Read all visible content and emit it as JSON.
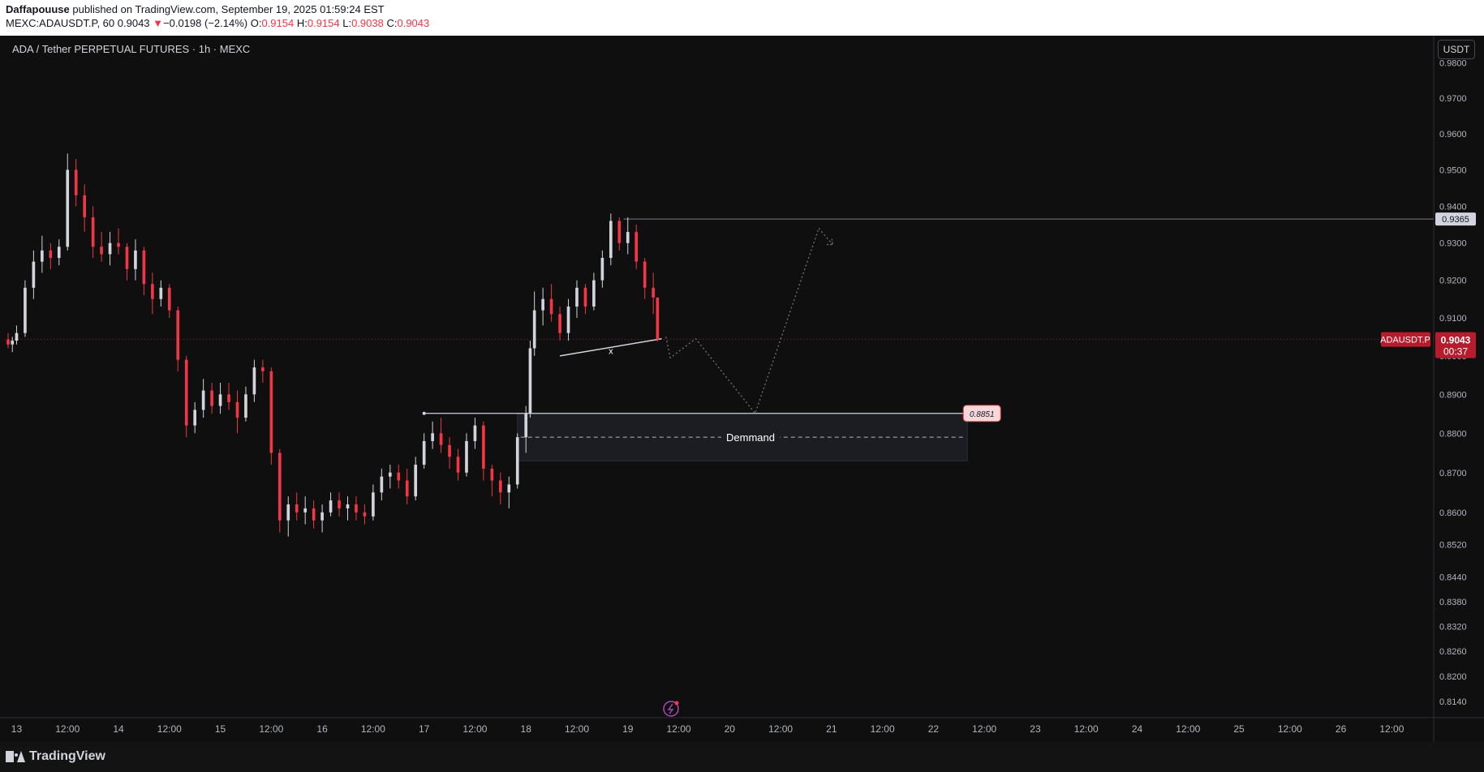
{
  "header": {
    "author": "Daffapouuse",
    "published": "published on TradingView.com, September 19, 2025 01:59:24 EST",
    "symbol_info": "MEXC:ADAUSDT.P, 60",
    "last": "0.9043",
    "change_arrow": "▼",
    "change": "−0.0198 (−2.14%)",
    "open_label": "O:",
    "open": "0.9154",
    "high_label": "H:",
    "high": "0.9154",
    "low_label": "L:",
    "low": "0.9038",
    "close_label": "C:",
    "close": "0.9043"
  },
  "chart_title": "ADA / Tether PERPETUAL FUTURES · 1h · MEXC",
  "unit_button": "USDT",
  "footer": {
    "brand": "TradingView"
  },
  "colors": {
    "up": "#d1d4dc",
    "down": "#f23645",
    "background": "#0f0f0f",
    "accent": "#ab47bc"
  },
  "chart_data": {
    "type": "candlestick",
    "title": "ADA / Tether PERPETUAL FUTURES · 1h · MEXC",
    "price_scale": "log",
    "y_ticks": [
      "0.9800",
      "0.9700",
      "0.9600",
      "0.9500",
      "0.9400",
      "0.9300",
      "0.9200",
      "0.9100",
      "0.9000",
      "0.8900",
      "0.8800",
      "0.8700",
      "0.8600",
      "0.8520",
      "0.8440",
      "0.8380",
      "0.8320",
      "0.8260",
      "0.8200",
      "0.8140"
    ],
    "x_ticks": [
      "13",
      "12:00",
      "14",
      "12:00",
      "15",
      "12:00",
      "16",
      "12:00",
      "17",
      "12:00",
      "18",
      "12:00",
      "19",
      "12:00",
      "20",
      "12:00",
      "21",
      "12:00",
      "22",
      "12:00",
      "23",
      "12:00",
      "24",
      "12:00",
      "25",
      "12:00",
      "26",
      "12:00"
    ],
    "x_start": "2025-09-12 22:00",
    "x_end": "2025-09-26 19:00",
    "candle_interval_hours": 1,
    "candles": [
      {
        "t": "2025-09-12 22:00",
        "o": 0.9043,
        "h": 0.906,
        "l": 0.902,
        "c": 0.903
      },
      {
        "t": "2025-09-12 23:00",
        "o": 0.903,
        "h": 0.905,
        "l": 0.901,
        "c": 0.904
      },
      {
        "t": "2025-09-13 00:00",
        "o": 0.904,
        "h": 0.908,
        "l": 0.903,
        "c": 0.906
      },
      {
        "t": "2025-09-13 02:00",
        "o": 0.906,
        "h": 0.92,
        "l": 0.905,
        "c": 0.918
      },
      {
        "t": "2025-09-13 04:00",
        "o": 0.918,
        "h": 0.928,
        "l": 0.915,
        "c": 0.925
      },
      {
        "t": "2025-09-13 06:00",
        "o": 0.925,
        "h": 0.932,
        "l": 0.922,
        "c": 0.928
      },
      {
        "t": "2025-09-13 08:00",
        "o": 0.928,
        "h": 0.93,
        "l": 0.923,
        "c": 0.926
      },
      {
        "t": "2025-09-13 10:00",
        "o": 0.926,
        "h": 0.931,
        "l": 0.924,
        "c": 0.929
      },
      {
        "t": "2025-09-13 12:00",
        "o": 0.929,
        "h": 0.9545,
        "l": 0.928,
        "c": 0.95
      },
      {
        "t": "2025-09-13 14:00",
        "o": 0.95,
        "h": 0.953,
        "l": 0.94,
        "c": 0.943
      },
      {
        "t": "2025-09-13 16:00",
        "o": 0.943,
        "h": 0.946,
        "l": 0.933,
        "c": 0.937
      },
      {
        "t": "2025-09-13 18:00",
        "o": 0.937,
        "h": 0.94,
        "l": 0.926,
        "c": 0.929
      },
      {
        "t": "2025-09-13 20:00",
        "o": 0.929,
        "h": 0.933,
        "l": 0.925,
        "c": 0.927
      },
      {
        "t": "2025-09-13 22:00",
        "o": 0.927,
        "h": 0.933,
        "l": 0.924,
        "c": 0.93
      },
      {
        "t": "2025-09-14 00:00",
        "o": 0.93,
        "h": 0.934,
        "l": 0.927,
        "c": 0.929
      },
      {
        "t": "2025-09-14 02:00",
        "o": 0.929,
        "h": 0.93,
        "l": 0.92,
        "c": 0.923
      },
      {
        "t": "2025-09-14 04:00",
        "o": 0.923,
        "h": 0.931,
        "l": 0.92,
        "c": 0.928
      },
      {
        "t": "2025-09-14 06:00",
        "o": 0.928,
        "h": 0.929,
        "l": 0.916,
        "c": 0.919
      },
      {
        "t": "2025-09-14 08:00",
        "o": 0.919,
        "h": 0.922,
        "l": 0.911,
        "c": 0.915
      },
      {
        "t": "2025-09-14 10:00",
        "o": 0.915,
        "h": 0.92,
        "l": 0.913,
        "c": 0.918
      },
      {
        "t": "2025-09-14 12:00",
        "o": 0.918,
        "h": 0.919,
        "l": 0.91,
        "c": 0.912
      },
      {
        "t": "2025-09-14 14:00",
        "o": 0.912,
        "h": 0.913,
        "l": 0.896,
        "c": 0.899
      },
      {
        "t": "2025-09-14 16:00",
        "o": 0.899,
        "h": 0.9,
        "l": 0.879,
        "c": 0.882
      },
      {
        "t": "2025-09-14 18:00",
        "o": 0.882,
        "h": 0.888,
        "l": 0.88,
        "c": 0.886
      },
      {
        "t": "2025-09-14 20:00",
        "o": 0.886,
        "h": 0.894,
        "l": 0.884,
        "c": 0.891
      },
      {
        "t": "2025-09-14 22:00",
        "o": 0.891,
        "h": 0.893,
        "l": 0.885,
        "c": 0.887
      },
      {
        "t": "2025-09-15 00:00",
        "o": 0.887,
        "h": 0.893,
        "l": 0.885,
        "c": 0.89
      },
      {
        "t": "2025-09-15 02:00",
        "o": 0.89,
        "h": 0.893,
        "l": 0.886,
        "c": 0.888
      },
      {
        "t": "2025-09-15 04:00",
        "o": 0.888,
        "h": 0.891,
        "l": 0.88,
        "c": 0.884
      },
      {
        "t": "2025-09-15 06:00",
        "o": 0.884,
        "h": 0.892,
        "l": 0.883,
        "c": 0.89
      },
      {
        "t": "2025-09-15 08:00",
        "o": 0.89,
        "h": 0.899,
        "l": 0.888,
        "c": 0.897
      },
      {
        "t": "2025-09-15 10:00",
        "o": 0.897,
        "h": 0.899,
        "l": 0.893,
        "c": 0.896
      },
      {
        "t": "2025-09-15 12:00",
        "o": 0.896,
        "h": 0.897,
        "l": 0.872,
        "c": 0.875
      },
      {
        "t": "2025-09-15 14:00",
        "o": 0.875,
        "h": 0.876,
        "l": 0.855,
        "c": 0.858
      },
      {
        "t": "2025-09-15 16:00",
        "o": 0.858,
        "h": 0.864,
        "l": 0.854,
        "c": 0.862
      },
      {
        "t": "2025-09-15 18:00",
        "o": 0.862,
        "h": 0.865,
        "l": 0.858,
        "c": 0.86
      },
      {
        "t": "2025-09-15 20:00",
        "o": 0.86,
        "h": 0.864,
        "l": 0.857,
        "c": 0.861
      },
      {
        "t": "2025-09-15 22:00",
        "o": 0.861,
        "h": 0.863,
        "l": 0.856,
        "c": 0.858
      },
      {
        "t": "2025-09-16 00:00",
        "o": 0.858,
        "h": 0.862,
        "l": 0.855,
        "c": 0.86
      },
      {
        "t": "2025-09-16 02:00",
        "o": 0.86,
        "h": 0.865,
        "l": 0.859,
        "c": 0.863
      },
      {
        "t": "2025-09-16 04:00",
        "o": 0.863,
        "h": 0.865,
        "l": 0.859,
        "c": 0.861
      },
      {
        "t": "2025-09-16 06:00",
        "o": 0.861,
        "h": 0.864,
        "l": 0.858,
        "c": 0.862
      },
      {
        "t": "2025-09-16 08:00",
        "o": 0.862,
        "h": 0.864,
        "l": 0.858,
        "c": 0.86
      },
      {
        "t": "2025-09-16 10:00",
        "o": 0.86,
        "h": 0.862,
        "l": 0.857,
        "c": 0.859
      },
      {
        "t": "2025-09-16 12:00",
        "o": 0.859,
        "h": 0.867,
        "l": 0.858,
        "c": 0.865
      },
      {
        "t": "2025-09-16 14:00",
        "o": 0.865,
        "h": 0.871,
        "l": 0.863,
        "c": 0.869
      },
      {
        "t": "2025-09-16 16:00",
        "o": 0.869,
        "h": 0.872,
        "l": 0.866,
        "c": 0.87
      },
      {
        "t": "2025-09-16 18:00",
        "o": 0.87,
        "h": 0.872,
        "l": 0.866,
        "c": 0.868
      },
      {
        "t": "2025-09-16 20:00",
        "o": 0.868,
        "h": 0.871,
        "l": 0.862,
        "c": 0.864
      },
      {
        "t": "2025-09-16 22:00",
        "o": 0.864,
        "h": 0.874,
        "l": 0.863,
        "c": 0.872
      },
      {
        "t": "2025-09-17 00:00",
        "o": 0.872,
        "h": 0.88,
        "l": 0.871,
        "c": 0.878
      },
      {
        "t": "2025-09-17 02:00",
        "o": 0.878,
        "h": 0.883,
        "l": 0.876,
        "c": 0.88
      },
      {
        "t": "2025-09-17 04:00",
        "o": 0.88,
        "h": 0.884,
        "l": 0.875,
        "c": 0.877
      },
      {
        "t": "2025-09-17 06:00",
        "o": 0.877,
        "h": 0.879,
        "l": 0.871,
        "c": 0.874
      },
      {
        "t": "2025-09-17 08:00",
        "o": 0.874,
        "h": 0.876,
        "l": 0.868,
        "c": 0.87
      },
      {
        "t": "2025-09-17 10:00",
        "o": 0.87,
        "h": 0.88,
        "l": 0.869,
        "c": 0.878
      },
      {
        "t": "2025-09-17 12:00",
        "o": 0.878,
        "h": 0.884,
        "l": 0.876,
        "c": 0.882
      },
      {
        "t": "2025-09-17 14:00",
        "o": 0.882,
        "h": 0.883,
        "l": 0.868,
        "c": 0.871
      },
      {
        "t": "2025-09-17 16:00",
        "o": 0.871,
        "h": 0.872,
        "l": 0.864,
        "c": 0.868
      },
      {
        "t": "2025-09-17 18:00",
        "o": 0.868,
        "h": 0.87,
        "l": 0.862,
        "c": 0.865
      },
      {
        "t": "2025-09-17 20:00",
        "o": 0.865,
        "h": 0.869,
        "l": 0.861,
        "c": 0.867
      },
      {
        "t": "2025-09-17 22:00",
        "o": 0.867,
        "h": 0.88,
        "l": 0.866,
        "c": 0.879
      },
      {
        "t": "2025-09-18 00:00",
        "o": 0.879,
        "h": 0.887,
        "l": 0.875,
        "c": 0.885
      },
      {
        "t": "2025-09-18 01:00",
        "o": 0.885,
        "h": 0.904,
        "l": 0.884,
        "c": 0.902
      },
      {
        "t": "2025-09-18 02:00",
        "o": 0.902,
        "h": 0.917,
        "l": 0.9,
        "c": 0.912
      },
      {
        "t": "2025-09-18 04:00",
        "o": 0.912,
        "h": 0.918,
        "l": 0.908,
        "c": 0.915
      },
      {
        "t": "2025-09-18 06:00",
        "o": 0.915,
        "h": 0.919,
        "l": 0.909,
        "c": 0.911
      },
      {
        "t": "2025-09-18 08:00",
        "o": 0.911,
        "h": 0.913,
        "l": 0.904,
        "c": 0.906
      },
      {
        "t": "2025-09-18 10:00",
        "o": 0.906,
        "h": 0.915,
        "l": 0.904,
        "c": 0.913
      },
      {
        "t": "2025-09-18 12:00",
        "o": 0.913,
        "h": 0.92,
        "l": 0.91,
        "c": 0.918
      },
      {
        "t": "2025-09-18 14:00",
        "o": 0.918,
        "h": 0.919,
        "l": 0.911,
        "c": 0.913
      },
      {
        "t": "2025-09-18 16:00",
        "o": 0.913,
        "h": 0.922,
        "l": 0.912,
        "c": 0.92
      },
      {
        "t": "2025-09-18 18:00",
        "o": 0.92,
        "h": 0.928,
        "l": 0.918,
        "c": 0.926
      },
      {
        "t": "2025-09-18 20:00",
        "o": 0.926,
        "h": 0.938,
        "l": 0.924,
        "c": 0.936
      },
      {
        "t": "2025-09-18 22:00",
        "o": 0.936,
        "h": 0.937,
        "l": 0.928,
        "c": 0.93
      },
      {
        "t": "2025-09-19 00:00",
        "o": 0.93,
        "h": 0.937,
        "l": 0.927,
        "c": 0.933
      },
      {
        "t": "2025-09-19 02:00",
        "o": 0.933,
        "h": 0.935,
        "l": 0.923,
        "c": 0.925
      },
      {
        "t": "2025-09-19 04:00",
        "o": 0.925,
        "h": 0.926,
        "l": 0.915,
        "c": 0.918
      },
      {
        "t": "2025-09-19 06:00",
        "o": 0.918,
        "h": 0.922,
        "l": 0.911,
        "c": 0.9154
      },
      {
        "t": "2025-09-19 07:00",
        "o": 0.9154,
        "h": 0.9154,
        "l": 0.9038,
        "c": 0.9043
      }
    ],
    "annotations": [
      {
        "type": "horizontal_line",
        "price": 0.9365,
        "label": "0.9365"
      },
      {
        "type": "horizontal_line",
        "price": 0.8851,
        "label": "0.8851"
      },
      {
        "type": "zone",
        "label": "Demmand",
        "top": 0.8851,
        "bottom": 0.873,
        "mid": 0.879
      },
      {
        "type": "trendline",
        "marker": "x"
      },
      {
        "type": "projection_path",
        "style": "dotted"
      }
    ],
    "last_price_label": {
      "symbol": "ADAUSDT.P",
      "price": "0.9043",
      "countdown": "00:37"
    }
  }
}
